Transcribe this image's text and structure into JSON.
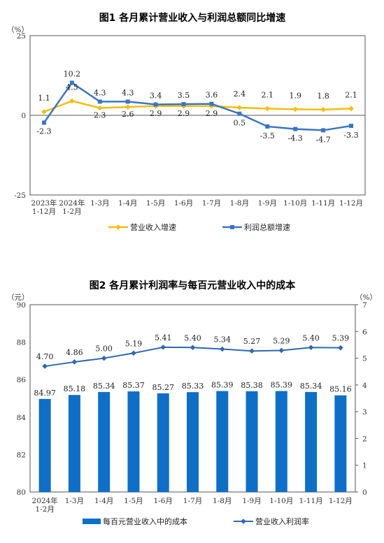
{
  "chart_data": [
    {
      "type": "line",
      "title": "图1  各月累计营业收入与利润总额同比增速",
      "yunit": "（%）",
      "ylim": [
        -25,
        25
      ],
      "yticks": [
        "25",
        "0",
        "-25"
      ],
      "categories": [
        [
          "2023年",
          "1-12月"
        ],
        [
          "2024年",
          "1-2月"
        ],
        [
          "1-3月"
        ],
        [
          "1-4月"
        ],
        [
          "1-5月"
        ],
        [
          "1-6月"
        ],
        [
          "1-7月"
        ],
        [
          "1-8月"
        ],
        [
          "1-9月"
        ],
        [
          "1-10月"
        ],
        [
          "1-11月"
        ],
        [
          "1-12月"
        ]
      ],
      "series": [
        {
          "name": "营业收入增速",
          "color": "#F5BE0F",
          "marker": "diamond",
          "values": [
            1.1,
            4.5,
            2.3,
            2.6,
            2.9,
            2.9,
            2.9,
            2.4,
            2.1,
            1.9,
            1.8,
            2.1
          ],
          "labels": [
            "1.1",
            "4.5",
            "2.3",
            "2.6",
            "2.9",
            "2.9",
            "2.9",
            "2.4",
            "2.1",
            "1.9",
            "1.8",
            "2.1"
          ]
        },
        {
          "name": "利润总额增速",
          "color": "#3A75C4",
          "marker": "square",
          "values": [
            -2.3,
            10.2,
            4.3,
            4.3,
            3.4,
            3.5,
            3.6,
            0.5,
            -3.5,
            -4.3,
            -4.7,
            -3.3
          ],
          "labels": [
            "-2.3",
            "10.2",
            "4.3",
            "4.3",
            "3.4",
            "3.5",
            "3.6",
            "0.5",
            "-3.5",
            "-4.3",
            "-4.7",
            "-3.3"
          ]
        }
      ]
    },
    {
      "type": "bar+line",
      "title": "图2  各月累计利润率与每百元营业收入中的成本",
      "yunit_left": "（元）",
      "yunit_right": "（%）",
      "ylim_left": [
        80,
        90
      ],
      "ylim_right": [
        0,
        7
      ],
      "yticks_left": [
        "90",
        "88",
        "86",
        "84",
        "82",
        "80"
      ],
      "yticks_right": [
        "7",
        "6",
        "5",
        "4",
        "3",
        "2",
        "1",
        "0"
      ],
      "categories": [
        [
          "2024年",
          "1-2月"
        ],
        [
          "1-3月"
        ],
        [
          "1-4月"
        ],
        [
          "1-5月"
        ],
        [
          "1-6月"
        ],
        [
          "1-7月"
        ],
        [
          "1-8月"
        ],
        [
          "1-9月"
        ],
        [
          "1-10月"
        ],
        [
          "1-11月"
        ],
        [
          "1-12月"
        ]
      ],
      "series": [
        {
          "name": "每百元营业收入中的成本",
          "kind": "bar",
          "axis": "left",
          "color": "#0E6FC8",
          "values": [
            84.97,
            85.18,
            85.34,
            85.37,
            85.27,
            85.33,
            85.39,
            85.38,
            85.39,
            85.34,
            85.16
          ],
          "labels": [
            "84.97",
            "85.18",
            "85.34",
            "85.37",
            "85.27",
            "85.33",
            "85.39",
            "85.38",
            "85.39",
            "85.34",
            "85.16"
          ]
        },
        {
          "name": "营业收入利润率",
          "kind": "line",
          "axis": "right",
          "color": "#2F67B5",
          "values": [
            4.7,
            4.86,
            5.0,
            5.19,
            5.41,
            5.4,
            5.34,
            5.27,
            5.29,
            5.4,
            5.39
          ],
          "labels": [
            "4.70",
            "4.86",
            "5.00",
            "5.19",
            "5.41",
            "5.40",
            "5.34",
            "5.27",
            "5.29",
            "5.40",
            "5.39"
          ]
        }
      ]
    }
  ]
}
